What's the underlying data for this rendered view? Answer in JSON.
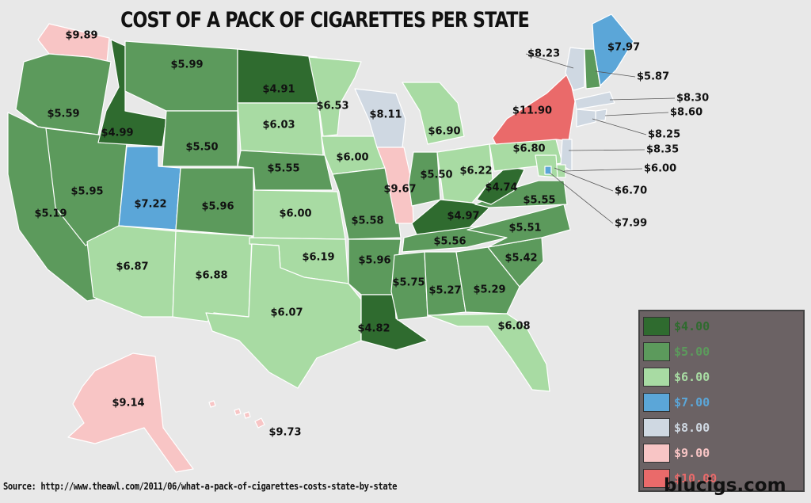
{
  "title": "COST OF A PACK OF CIGARETTES PER STATE",
  "source": "Source: http://www.theawl.com/2011/06/what-a-pack-of-cigarettes-costs-state-by-state",
  "brand": "blucigs.com",
  "colors": {
    "c4": "#2f6b2f",
    "c5": "#5c9a5c",
    "c6": "#a8dba3",
    "c7": "#5ba6d8",
    "c8": "#cfd8e2",
    "c9": "#f8c5c5",
    "c10": "#ea6a6a"
  },
  "legend": [
    {
      "label": "$4.00",
      "color": "c4"
    },
    {
      "label": "$5.00",
      "color": "c5"
    },
    {
      "label": "$6.00",
      "color": "c6"
    },
    {
      "label": "$7.00",
      "color": "c7"
    },
    {
      "label": "$8.00",
      "color": "c8"
    },
    {
      "label": "$9.00",
      "color": "c9"
    },
    {
      "label": "$10.00",
      "color": "c10"
    }
  ],
  "states": {
    "WA": {
      "price": "$9.89",
      "color": "c9"
    },
    "OR": {
      "price": "$5.59",
      "color": "c5"
    },
    "CA": {
      "price": "$5.19",
      "color": "c5"
    },
    "ID": {
      "price": "$4.99",
      "color": "c4"
    },
    "NV": {
      "price": "$5.95",
      "color": "c5"
    },
    "MT": {
      "price": "$5.99",
      "color": "c5"
    },
    "WY": {
      "price": "$5.50",
      "color": "c5"
    },
    "UT": {
      "price": "$7.22",
      "color": "c7"
    },
    "AZ": {
      "price": "$6.87",
      "color": "c6"
    },
    "CO": {
      "price": "$5.96",
      "color": "c5"
    },
    "NM": {
      "price": "$6.88",
      "color": "c6"
    },
    "ND": {
      "price": "$4.91",
      "color": "c4"
    },
    "SD": {
      "price": "$6.03",
      "color": "c6"
    },
    "NE": {
      "price": "$5.55",
      "color": "c5"
    },
    "KS": {
      "price": "$6.00",
      "color": "c6"
    },
    "OK": {
      "price": "$6.19",
      "color": "c6"
    },
    "TX": {
      "price": "$6.07",
      "color": "c6"
    },
    "MN": {
      "price": "$6.53",
      "color": "c6"
    },
    "IA": {
      "price": "$6.00",
      "color": "c6"
    },
    "MO": {
      "price": "$5.58",
      "color": "c5"
    },
    "AR": {
      "price": "$5.96",
      "color": "c5"
    },
    "LA": {
      "price": "$4.82",
      "color": "c4"
    },
    "WI": {
      "price": "$8.11",
      "color": "c8"
    },
    "IL": {
      "price": "$9.67",
      "color": "c9"
    },
    "MI": {
      "price": "$6.90",
      "color": "c6"
    },
    "IN": {
      "price": "$5.50",
      "color": "c5"
    },
    "OH": {
      "price": "$6.22",
      "color": "c6"
    },
    "KY": {
      "price": "$4.97",
      "color": "c4"
    },
    "TN": {
      "price": "$5.56",
      "color": "c5"
    },
    "MS": {
      "price": "$5.75",
      "color": "c5"
    },
    "AL": {
      "price": "$5.27",
      "color": "c5"
    },
    "GA": {
      "price": "$5.29",
      "color": "c5"
    },
    "FL": {
      "price": "$6.08",
      "color": "c6"
    },
    "SC": {
      "price": "$5.42",
      "color": "c5"
    },
    "NC": {
      "price": "$5.51",
      "color": "c5"
    },
    "VA": {
      "price": "$5.55",
      "color": "c5"
    },
    "WV": {
      "price": "$4.74",
      "color": "c4"
    },
    "PA": {
      "price": "$6.80",
      "color": "c6"
    },
    "NY": {
      "price": "$11.90",
      "color": "c10"
    },
    "VT": {
      "price": "$8.23",
      "color": "c8"
    },
    "NH": {
      "price": "$5.87",
      "color": "c5"
    },
    "ME": {
      "price": "$7.97",
      "color": "c7"
    },
    "MA": {
      "price": "$8.30",
      "color": "c8"
    },
    "RI": {
      "price": "$8.60",
      "color": "c8"
    },
    "CT": {
      "price": "$8.25",
      "color": "c8"
    },
    "NJ": {
      "price": "$8.35",
      "color": "c8"
    },
    "DE": {
      "price": "$6.00",
      "color": "c6"
    },
    "MD": {
      "price": "$6.70",
      "color": "c6"
    },
    "DC": {
      "price": "$7.99",
      "color": "c7"
    },
    "AK": {
      "price": "$9.14",
      "color": "c9"
    },
    "HI": {
      "price": "$9.73",
      "color": "c9"
    }
  }
}
